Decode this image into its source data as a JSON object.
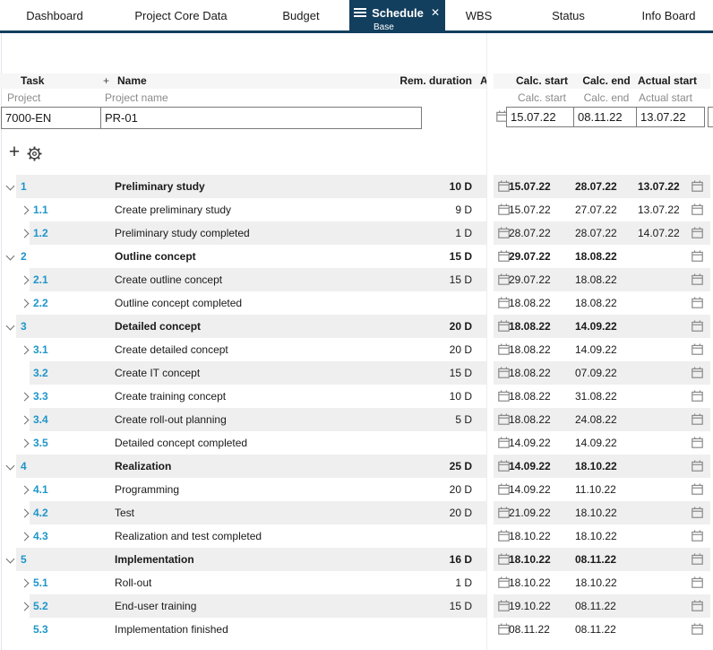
{
  "tabs": [
    {
      "label": "Dashboard"
    },
    {
      "label": "Project Core Data"
    },
    {
      "label": "Budget"
    },
    {
      "label": "Schedule",
      "sublabel": "Base",
      "active": true
    },
    {
      "label": "WBS"
    },
    {
      "label": "Status"
    },
    {
      "label": "Info Board"
    }
  ],
  "grid": {
    "headers": {
      "task": "Task",
      "add": "+",
      "name": "Name",
      "rem_duration": "Rem. duration",
      "clipped_col": "A",
      "calc_start": "Calc. start",
      "calc_end": "Calc. end",
      "actual_start": "Actual start"
    },
    "subheaders": {
      "task": "Project",
      "name": "Project name",
      "calc_start": "Calc. start",
      "calc_end": "Calc. end",
      "actual_start": "Actual start"
    },
    "project": {
      "task_id": "7000-EN",
      "name": "PR-01",
      "calc_start": "15.07.22",
      "calc_end": "08.11.22",
      "actual_start": "13.07.22"
    }
  },
  "rows": [
    {
      "num": "1",
      "name": "Preliminary study",
      "duration": "10 D",
      "calc_start": "15.07.22",
      "calc_end": "28.07.22",
      "actual_start": "13.07.22",
      "level": 1,
      "section": true,
      "chevron": "down"
    },
    {
      "num": "1.1",
      "name": "Create preliminary study",
      "duration": "9 D",
      "calc_start": "15.07.22",
      "calc_end": "27.07.22",
      "actual_start": "13.07.22",
      "level": 2,
      "section": false,
      "chevron": "right"
    },
    {
      "num": "1.2",
      "name": "Preliminary study completed",
      "duration": "1 D",
      "calc_start": "28.07.22",
      "calc_end": "28.07.22",
      "actual_start": "14.07.22",
      "level": 2,
      "section": false,
      "chevron": "right"
    },
    {
      "num": "2",
      "name": "Outline concept",
      "duration": "15 D",
      "calc_start": "29.07.22",
      "calc_end": "18.08.22",
      "actual_start": "",
      "level": 1,
      "section": true,
      "chevron": "down"
    },
    {
      "num": "2.1",
      "name": "Create outline concept",
      "duration": "15 D",
      "calc_start": "29.07.22",
      "calc_end": "18.08.22",
      "actual_start": "",
      "level": 2,
      "section": false,
      "chevron": "right"
    },
    {
      "num": "2.2",
      "name": "Outline concept completed",
      "duration": "",
      "calc_start": "18.08.22",
      "calc_end": "18.08.22",
      "actual_start": "",
      "level": 2,
      "section": false,
      "chevron": "right"
    },
    {
      "num": "3",
      "name": "Detailed concept",
      "duration": "20 D",
      "calc_start": "18.08.22",
      "calc_end": "14.09.22",
      "actual_start": "",
      "level": 1,
      "section": true,
      "chevron": "down"
    },
    {
      "num": "3.1",
      "name": "Create detailed concept",
      "duration": "20 D",
      "calc_start": "18.08.22",
      "calc_end": "14.09.22",
      "actual_start": "",
      "level": 2,
      "section": false,
      "chevron": "right"
    },
    {
      "num": "3.2",
      "name": "Create IT concept",
      "duration": "15 D",
      "calc_start": "18.08.22",
      "calc_end": "07.09.22",
      "actual_start": "",
      "level": 2,
      "section": false,
      "chevron": "none"
    },
    {
      "num": "3.3",
      "name": "Create training concept",
      "duration": "10 D",
      "calc_start": "18.08.22",
      "calc_end": "31.08.22",
      "actual_start": "",
      "level": 2,
      "section": false,
      "chevron": "right"
    },
    {
      "num": "3.4",
      "name": "Create roll-out planning",
      "duration": "5 D",
      "calc_start": "18.08.22",
      "calc_end": "24.08.22",
      "actual_start": "",
      "level": 2,
      "section": false,
      "chevron": "right"
    },
    {
      "num": "3.5",
      "name": "Detailed concept completed",
      "duration": "",
      "calc_start": "14.09.22",
      "calc_end": "14.09.22",
      "actual_start": "",
      "level": 2,
      "section": false,
      "chevron": "right"
    },
    {
      "num": "4",
      "name": "Realization",
      "duration": "25 D",
      "calc_start": "14.09.22",
      "calc_end": "18.10.22",
      "actual_start": "",
      "level": 1,
      "section": true,
      "chevron": "down"
    },
    {
      "num": "4.1",
      "name": "Programming",
      "duration": "20 D",
      "calc_start": "14.09.22",
      "calc_end": "11.10.22",
      "actual_start": "",
      "level": 2,
      "section": false,
      "chevron": "right"
    },
    {
      "num": "4.2",
      "name": "Test",
      "duration": "20 D",
      "calc_start": "21.09.22",
      "calc_end": "18.10.22",
      "actual_start": "",
      "level": 2,
      "section": false,
      "chevron": "right"
    },
    {
      "num": "4.3",
      "name": "Realization and test completed",
      "duration": "",
      "calc_start": "18.10.22",
      "calc_end": "18.10.22",
      "actual_start": "",
      "level": 2,
      "section": false,
      "chevron": "right"
    },
    {
      "num": "5",
      "name": "Implementation",
      "duration": "16 D",
      "calc_start": "18.10.22",
      "calc_end": "08.11.22",
      "actual_start": "",
      "level": 1,
      "section": true,
      "chevron": "down"
    },
    {
      "num": "5.1",
      "name": "Roll-out",
      "duration": "1 D",
      "calc_start": "18.10.22",
      "calc_end": "18.10.22",
      "actual_start": "",
      "level": 2,
      "section": false,
      "chevron": "right"
    },
    {
      "num": "5.2",
      "name": "End-user training",
      "duration": "15 D",
      "calc_start": "19.10.22",
      "calc_end": "08.11.22",
      "actual_start": "",
      "level": 2,
      "section": false,
      "chevron": "right"
    },
    {
      "num": "5.3",
      "name": "Implementation finished",
      "duration": "",
      "calc_start": "08.11.22",
      "calc_end": "08.11.22",
      "actual_start": "",
      "level": 2,
      "section": false,
      "chevron": "none"
    }
  ],
  "colors": {
    "accent_navy": "#133F5E",
    "link_blue": "#1E96C9",
    "row_stripe": "#EFEFEF",
    "header_bg": "#F6F6F6",
    "muted_text": "#8A8A8A",
    "input_border": "#7A7A7A"
  }
}
